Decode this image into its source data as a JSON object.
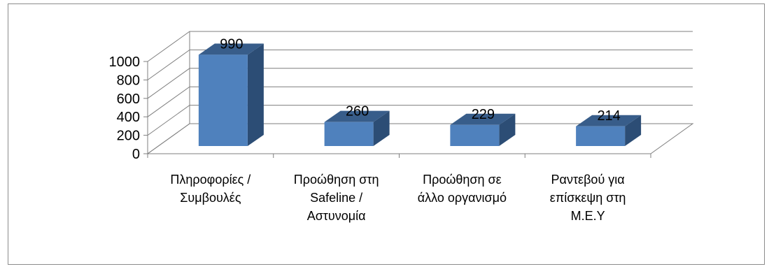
{
  "chart_data": {
    "type": "bar",
    "style": "3d-column",
    "categories": [
      [
        "Πληροφορίες /",
        "Συμβουλές"
      ],
      [
        "Προώθηση στη",
        "Safeline /",
        "Αστυνομία"
      ],
      [
        "Προώθηση σε",
        "άλλο οργανισμό"
      ],
      [
        "Ραντεβού για",
        "επίσκεψη στη",
        "Μ.Ε.Υ"
      ]
    ],
    "values": [
      990,
      260,
      229,
      214
    ],
    "data_labels": [
      "990",
      "260",
      "229",
      "214"
    ],
    "y_ticks": [
      "0",
      "200",
      "400",
      "600",
      "800",
      "1000"
    ],
    "ylim": [
      0,
      1000
    ],
    "title": "",
    "xlabel": "",
    "ylabel": "",
    "grid": true,
    "legend": "none",
    "colors": {
      "bar_front": "#4f81bd",
      "bar_side": "#2c4d75",
      "bar_top": "#385d8a",
      "grid": "#7f7f7f"
    }
  }
}
